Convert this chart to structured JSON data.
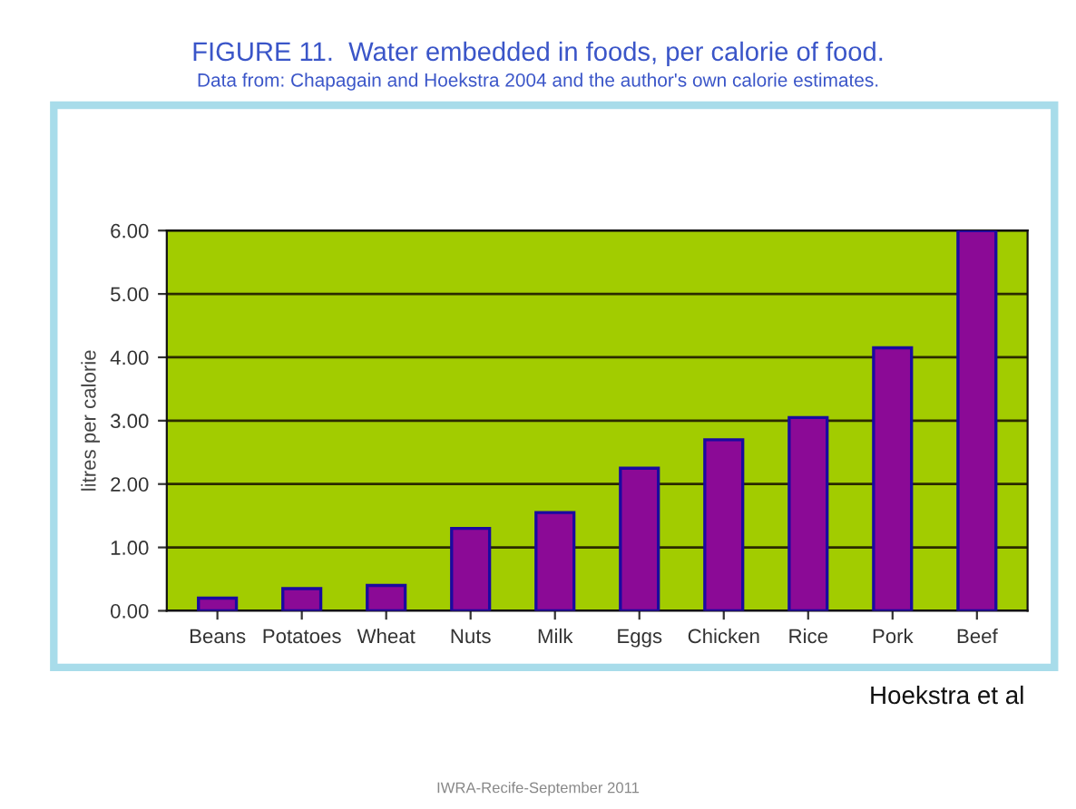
{
  "chart_data": {
    "type": "bar",
    "title": "FIGURE 11.  Water embedded in foods, per calorie of food.",
    "subtitle": "Data from: Chapagain and Hoekstra 2004 and the author's own calorie estimates.",
    "ylabel": "litres per calorie",
    "categories": [
      "Beans",
      "Potatoes",
      "Wheat",
      "Nuts",
      "Milk",
      "Eggs",
      "Chicken",
      "Rice",
      "Pork",
      "Beef"
    ],
    "values": [
      0.2,
      0.35,
      0.4,
      1.3,
      1.55,
      2.25,
      2.7,
      3.05,
      4.15,
      6.0
    ],
    "color": "#8b0a96",
    "ylim": [
      0,
      6
    ],
    "yticks": [
      {
        "value": 0,
        "label": "0.00"
      },
      {
        "value": 1,
        "label": "1.00"
      },
      {
        "value": 2,
        "label": "2.00"
      },
      {
        "value": 3,
        "label": "3.00"
      },
      {
        "value": 4,
        "label": "4.00"
      },
      {
        "value": 5,
        "label": "5.00"
      },
      {
        "value": 6,
        "label": "6.00"
      }
    ],
    "grid": "y",
    "annotations": [
      "Hoekstra et al",
      "IWRA-Recife-September 2011"
    ]
  }
}
